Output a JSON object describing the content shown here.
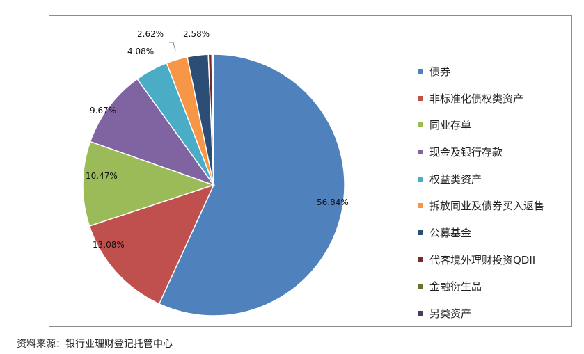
{
  "chart_data": {
    "type": "pie",
    "title": "",
    "series": [
      {
        "name": "债券",
        "value": 56.84,
        "color": "#4f81bd",
        "label": "56.84%"
      },
      {
        "name": "非标准化债权类资产",
        "value": 13.08,
        "color": "#c0504d",
        "label": "13.08%"
      },
      {
        "name": "同业存单",
        "value": 10.47,
        "color": "#9bbb59",
        "label": "10.47%"
      },
      {
        "name": "现金及银行存款",
        "value": 9.67,
        "color": "#8064a2",
        "label": "9.67%"
      },
      {
        "name": "权益类资产",
        "value": 4.08,
        "color": "#4bacc6",
        "label": "4.08%"
      },
      {
        "name": "拆放同业及债券买入返售",
        "value": 2.62,
        "color": "#f79646",
        "label": "2.62%"
      },
      {
        "name": "公募基金",
        "value": 2.58,
        "color": "#2c4d75",
        "label": "2.58%"
      },
      {
        "name": "代客境外理财投资QDII",
        "value": 0.44,
        "color": "#772c2a",
        "label": ""
      },
      {
        "name": "金融衍生品",
        "value": 0.11,
        "color": "#5f7530",
        "label": ""
      },
      {
        "name": "另类资产",
        "value": 0.11,
        "color": "#4d3b62",
        "label": ""
      }
    ],
    "legend_position": "right"
  },
  "source": "资料来源：银行业理财登记托管中心"
}
